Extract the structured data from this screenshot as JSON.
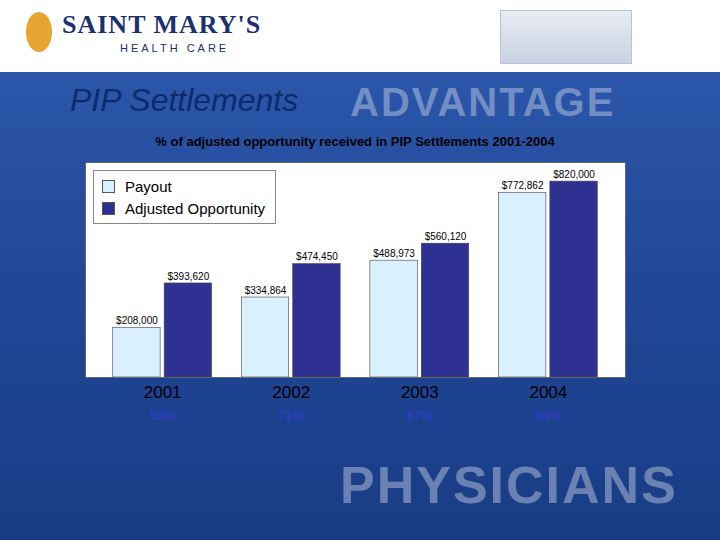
{
  "chart_data": {
    "type": "bar",
    "title": "PIP Settlements",
    "subtitle": "% of adjusted opportunity received in PIP Settlements 2001-2004",
    "logo_text": [
      "SAINT MARY'S",
      "HEALTH CARE"
    ],
    "watermark": [
      "ADVANTAGE",
      "PHYSICIANS"
    ],
    "categories": [
      "2001",
      "2002",
      "2003",
      "2004"
    ],
    "series": [
      {
        "name": "Payout",
        "color": "#d9f0ff",
        "values": [
          208000,
          334864,
          488973,
          772862
        ],
        "value_labels": [
          "$208,000",
          "$334,864",
          "$488,973",
          "$772,862"
        ]
      },
      {
        "name": "Adjusted Opportunity",
        "color": "#2e3192",
        "values": [
          393620,
          474450,
          560120,
          820000
        ],
        "value_labels": [
          "$393,620",
          "$474,450",
          "$560,120",
          "$820,000"
        ]
      }
    ],
    "received_percent": [
      53,
      71,
      87,
      94
    ],
    "received_percent_labels": [
      "53%",
      "71%",
      "87%",
      "94%"
    ],
    "ylim": [
      0,
      900000
    ],
    "yticks": [],
    "tick_labels": "x",
    "grid": false,
    "legend": "top-left",
    "data_labels": true
  }
}
